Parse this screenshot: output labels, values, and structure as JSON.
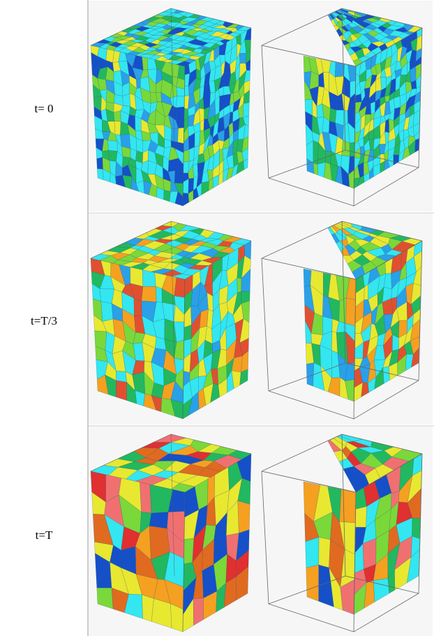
{
  "rows": [
    {
      "label": "t= 0"
    },
    {
      "label": "t=T/3"
    },
    {
      "label": "t=T"
    }
  ]
}
